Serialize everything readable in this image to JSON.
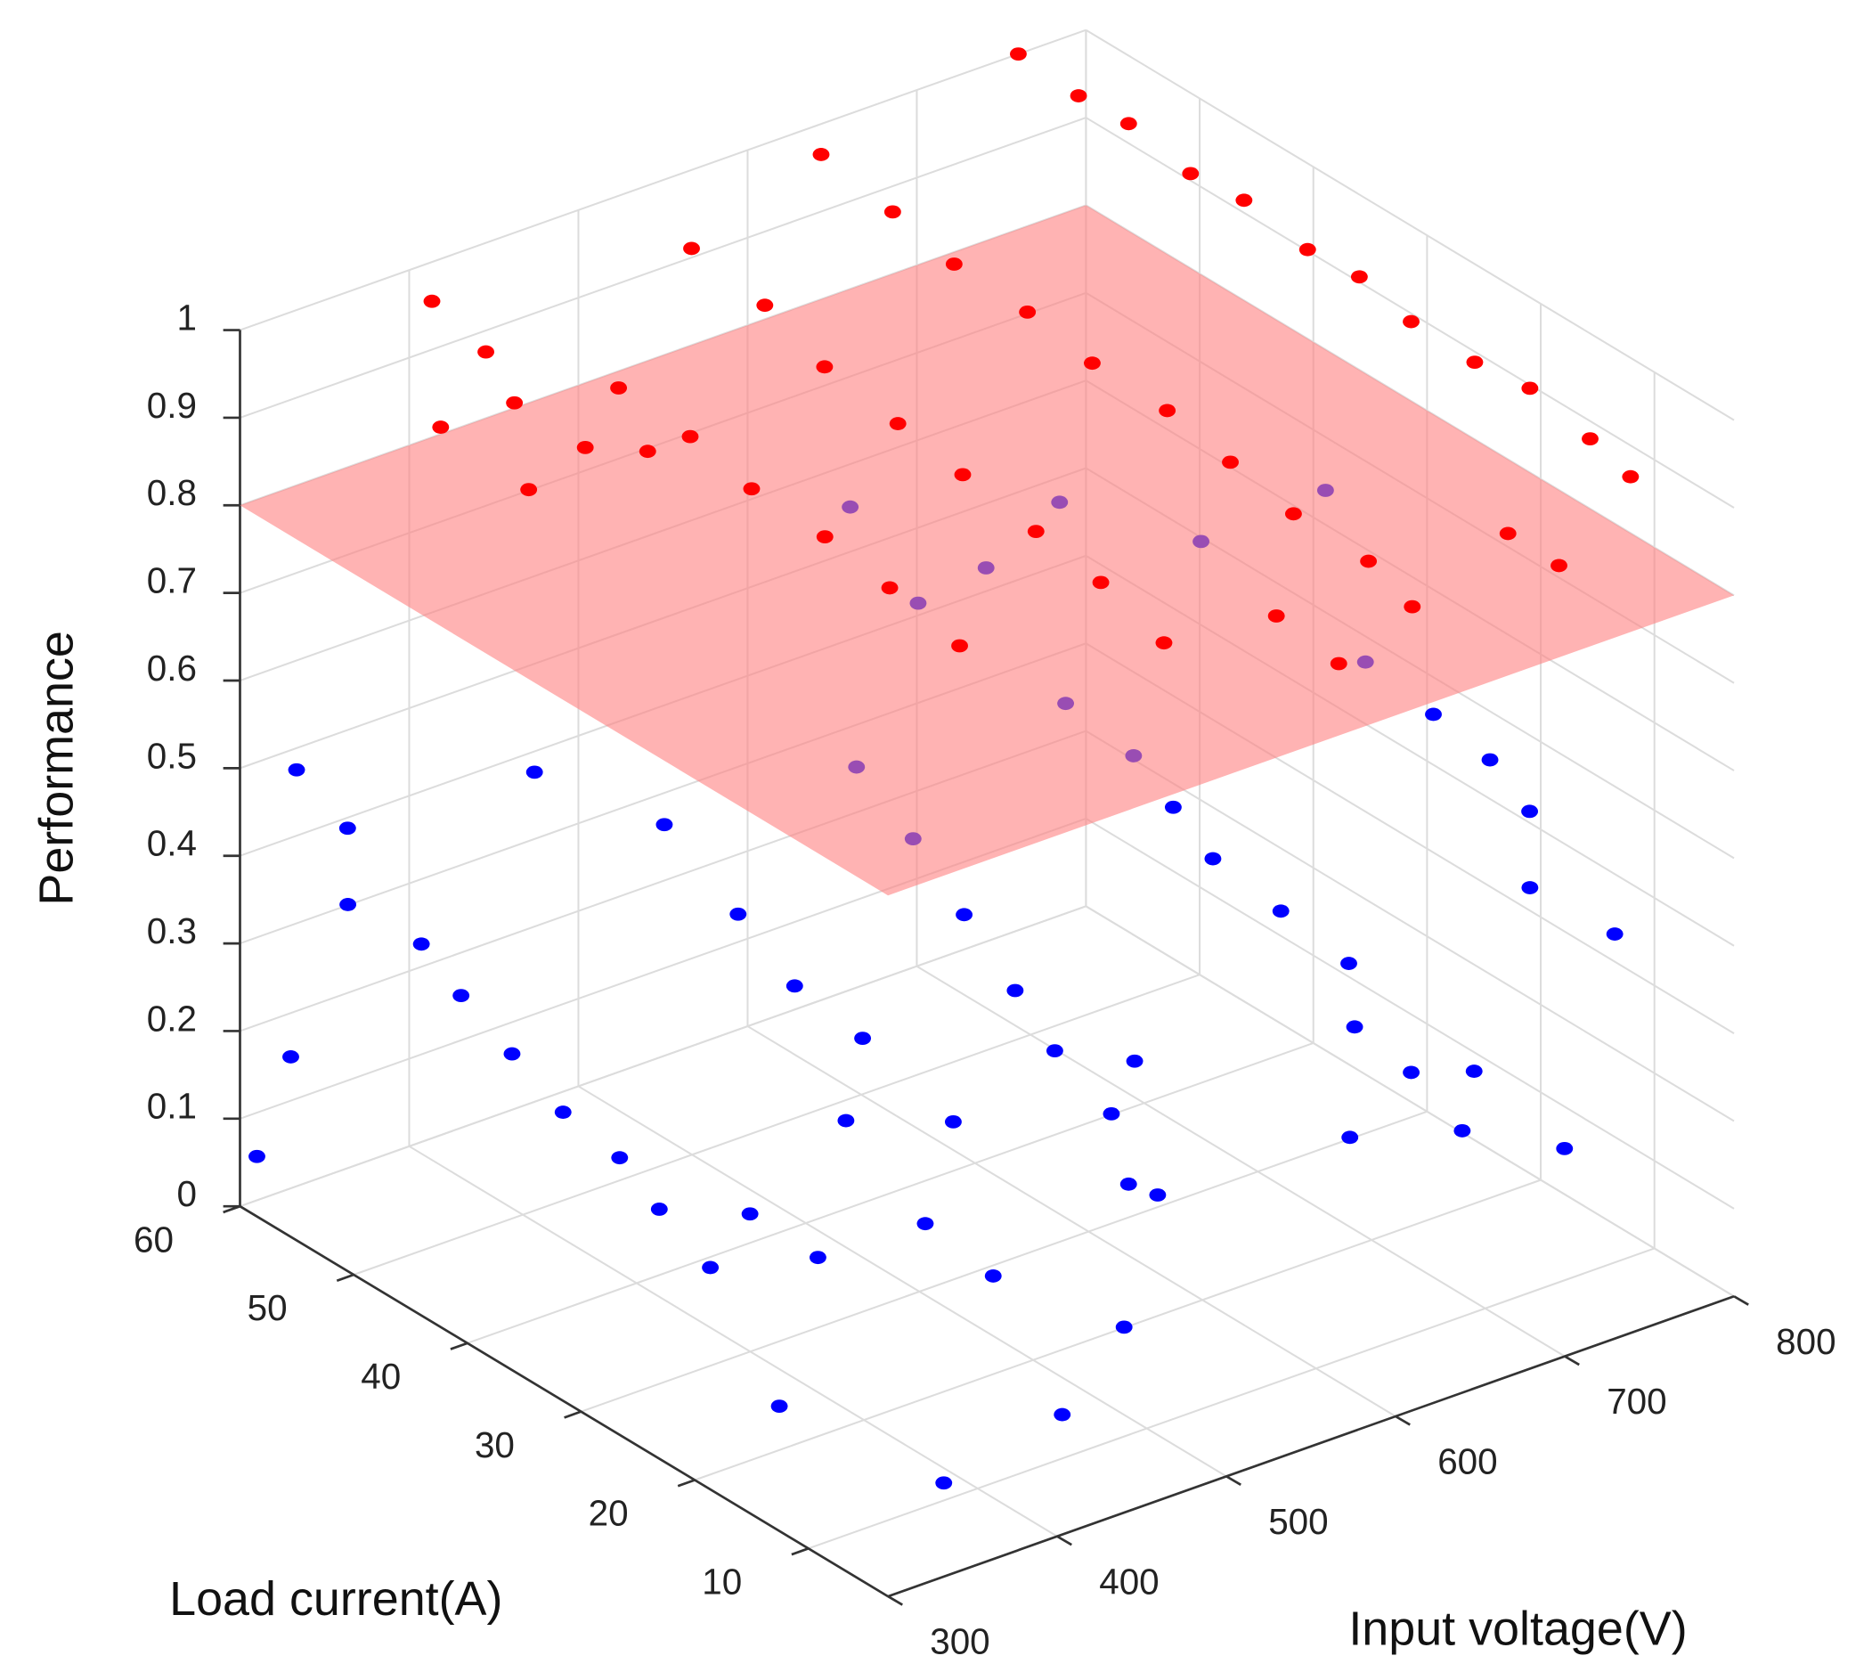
{
  "chart_data": {
    "type": "scatter3d",
    "xlabel": "Input voltage(V)",
    "ylabel": "Load current(A)",
    "zlabel": "Performance",
    "xlim": [
      300,
      800
    ],
    "ylim": [
      3,
      60
    ],
    "zlim": [
      0,
      1
    ],
    "xticks": [
      300,
      400,
      500,
      600,
      700,
      800
    ],
    "yticks": [
      10,
      20,
      30,
      40,
      50,
      60
    ],
    "zticks": [
      0,
      0.1,
      0.2,
      0.3,
      0.4,
      0.5,
      0.6,
      0.7,
      0.8,
      0.9,
      1
    ],
    "grid": true,
    "plane": {
      "z": 0.8,
      "color": "#ff8080"
    },
    "series": [
      {
        "color": "#0000ff",
        "points": [
          [
            320,
            58,
            0.5
          ],
          [
            330,
            55,
            0.45
          ],
          [
            310,
            52,
            0.4
          ],
          [
            340,
            50,
            0.35
          ],
          [
            350,
            48,
            0.3
          ],
          [
            360,
            45,
            0.25
          ],
          [
            330,
            60,
            0.15
          ],
          [
            310,
            60,
            0.05
          ],
          [
            370,
            42,
            0.2
          ],
          [
            390,
            40,
            0.15
          ],
          [
            400,
            38,
            0.1
          ],
          [
            410,
            35,
            0.05
          ],
          [
            420,
            33,
            0.12
          ],
          [
            440,
            30,
            0.08
          ],
          [
            380,
            46,
            0.55
          ],
          [
            450,
            45,
            0.45
          ],
          [
            460,
            40,
            0.38
          ],
          [
            480,
            38,
            0.3
          ],
          [
            500,
            35,
            0.25
          ],
          [
            470,
            32,
            0.2
          ],
          [
            520,
            30,
            0.18
          ],
          [
            490,
            28,
            0.1
          ],
          [
            510,
            25,
            0.05
          ],
          [
            530,
            40,
            0.5
          ],
          [
            550,
            38,
            0.42
          ],
          [
            560,
            35,
            0.35
          ],
          [
            570,
            32,
            0.28
          ],
          [
            580,
            30,
            0.22
          ],
          [
            600,
            28,
            0.15
          ],
          [
            590,
            25,
            0.1
          ],
          [
            620,
            35,
            0.55
          ],
          [
            640,
            32,
            0.5
          ],
          [
            650,
            30,
            0.45
          ],
          [
            660,
            28,
            0.4
          ],
          [
            680,
            25,
            0.35
          ],
          [
            700,
            22,
            0.3
          ],
          [
            690,
            20,
            0.25
          ],
          [
            710,
            18,
            0.2
          ],
          [
            720,
            15,
            0.15
          ],
          [
            730,
            25,
            0.6
          ],
          [
            750,
            22,
            0.55
          ],
          [
            770,
            20,
            0.5
          ],
          [
            780,
            18,
            0.45
          ],
          [
            760,
            15,
            0.4
          ],
          [
            790,
            12,
            0.35
          ],
          [
            600,
            45,
            0.6
          ],
          [
            620,
            42,
            0.65
          ],
          [
            580,
            48,
            0.7
          ],
          [
            650,
            40,
            0.72
          ],
          [
            700,
            35,
            0.68
          ],
          [
            740,
            30,
            0.75
          ],
          [
            560,
            20,
            0.3
          ],
          [
            540,
            15,
            0.2
          ],
          [
            500,
            12,
            0.1
          ],
          [
            450,
            10,
            0.05
          ],
          [
            620,
            10,
            0.25
          ],
          [
            680,
            8,
            0.3
          ],
          [
            720,
            6,
            0.2
          ],
          [
            350,
            20,
            0.05
          ],
          [
            380,
            10,
            0.02
          ]
        ]
      },
      {
        "color": "#ff0000",
        "points": [
          [
            760,
            60,
            1.0
          ],
          [
            762,
            55,
            0.99
          ],
          [
            758,
            50,
            1.0
          ],
          [
            761,
            45,
            0.98
          ],
          [
            759,
            40,
            0.99
          ],
          [
            763,
            35,
            0.97
          ],
          [
            760,
            30,
            0.98
          ],
          [
            757,
            25,
            0.97
          ],
          [
            761,
            20,
            0.96
          ],
          [
            760,
            15,
            0.97
          ],
          [
            762,
            10,
            0.95
          ],
          [
            759,
            6,
            0.94
          ],
          [
            630,
            58,
            0.99
          ],
          [
            632,
            52,
            0.97
          ],
          [
            628,
            46,
            0.96
          ],
          [
            631,
            40,
            0.95
          ],
          [
            629,
            34,
            0.94
          ],
          [
            633,
            28,
            0.93
          ],
          [
            630,
            22,
            0.92
          ],
          [
            627,
            16,
            0.91
          ],
          [
            631,
            10,
            0.9
          ],
          [
            630,
            6,
            0.88
          ],
          [
            540,
            56,
            0.96
          ],
          [
            543,
            50,
            0.94
          ],
          [
            538,
            44,
            0.92
          ],
          [
            541,
            38,
            0.9
          ],
          [
            539,
            32,
            0.89
          ],
          [
            542,
            26,
            0.87
          ],
          [
            540,
            20,
            0.86
          ],
          [
            537,
            14,
            0.84
          ],
          [
            470,
            52,
            0.88
          ],
          [
            472,
            46,
            0.87
          ],
          [
            468,
            40,
            0.86
          ],
          [
            471,
            34,
            0.85
          ],
          [
            469,
            28,
            0.84
          ],
          [
            470,
            22,
            0.82
          ],
          [
            400,
            58,
            0.98
          ],
          [
            405,
            54,
            0.95
          ],
          [
            395,
            50,
            0.93
          ],
          [
            410,
            46,
            0.9
          ],
          [
            385,
            55,
            0.87
          ],
          [
            420,
            42,
            0.92
          ],
          [
            390,
            48,
            0.85
          ],
          [
            700,
            8,
            0.9
          ],
          [
            710,
            5,
            0.88
          ],
          [
            590,
            12,
            0.85
          ],
          [
            600,
            8,
            0.82
          ]
        ]
      }
    ]
  }
}
